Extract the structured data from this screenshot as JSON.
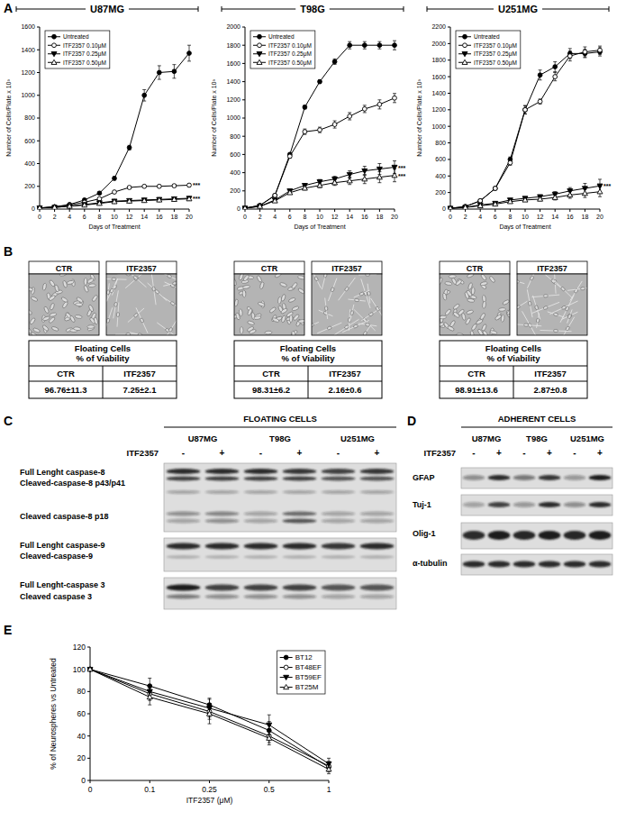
{
  "panel_labels": [
    "A",
    "B",
    "C",
    "D",
    "E"
  ],
  "chart_data": [
    {
      "type": "line",
      "title": "U87MG",
      "x_label": "Days of Treatment",
      "y_label": "Number of Cells/Plate x 10³",
      "x": [
        0,
        2,
        4,
        6,
        8,
        10,
        12,
        14,
        16,
        18,
        20
      ],
      "xlim": [
        0,
        20
      ],
      "xticks": [
        0,
        2,
        4,
        6,
        8,
        10,
        12,
        14,
        16,
        18,
        20
      ],
      "ylim": [
        0,
        1600
      ],
      "yticks": [
        0,
        200,
        400,
        600,
        800,
        1000,
        1200,
        1400,
        1600
      ],
      "grid": false,
      "legend": "upper left",
      "series": [
        {
          "name": "Untreated",
          "color": "#000000",
          "marker": "circle",
          "line_style": "solid",
          "values": [
            10,
            20,
            40,
            80,
            140,
            270,
            540,
            1000,
            1200,
            1210,
            1370
          ],
          "errors": [
            2,
            3,
            5,
            8,
            10,
            15,
            20,
            50,
            60,
            60,
            70
          ]
        },
        {
          "name": "ITF2357 0.10μM",
          "color": "#000000",
          "marker": "open-circle",
          "line_style": "solid",
          "values": [
            10,
            20,
            35,
            60,
            90,
            150,
            190,
            200,
            200,
            205,
            210
          ],
          "errors": [
            2,
            3,
            4,
            5,
            6,
            8,
            10,
            10,
            12,
            12,
            15
          ],
          "annotation": "***"
        },
        {
          "name": "ITF2357 0.25μM",
          "color": "#000000",
          "marker": "triangle-down",
          "line_style": "solid",
          "values": [
            10,
            15,
            25,
            40,
            55,
            70,
            75,
            80,
            85,
            90,
            95
          ],
          "errors": [
            2,
            2,
            3,
            4,
            4,
            5,
            5,
            6,
            6,
            7,
            7
          ],
          "annotation": "***"
        },
        {
          "name": "ITF2357 0.50μM",
          "color": "#000000",
          "marker": "open-triangle",
          "line_style": "solid",
          "values": [
            10,
            15,
            25,
            35,
            50,
            65,
            70,
            75,
            80,
            85,
            90
          ],
          "errors": [
            2,
            2,
            3,
            4,
            4,
            5,
            5,
            6,
            6,
            7,
            7
          ]
        }
      ]
    },
    {
      "type": "line",
      "title": "T98G",
      "x_label": "Days of Treatment",
      "y_label": "Number of Cells/Plate x 10³",
      "x": [
        0,
        2,
        4,
        6,
        8,
        10,
        12,
        14,
        16,
        18,
        20
      ],
      "xlim": [
        0,
        20
      ],
      "xticks": [
        0,
        2,
        4,
        6,
        8,
        10,
        12,
        14,
        16,
        18,
        20
      ],
      "ylim": [
        0,
        2000
      ],
      "yticks": [
        0,
        200,
        400,
        600,
        800,
        1000,
        1200,
        1400,
        1600,
        1800,
        2000
      ],
      "grid": false,
      "legend": "upper left",
      "series": [
        {
          "name": "Untreated",
          "color": "#000000",
          "marker": "circle",
          "line_style": "solid",
          "values": [
            10,
            40,
            150,
            600,
            1120,
            1400,
            1620,
            1800,
            1800,
            1800,
            1800
          ],
          "errors": [
            2,
            5,
            10,
            20,
            20,
            20,
            30,
            40,
            40,
            40,
            50
          ]
        },
        {
          "name": "ITF2357 0.10μM",
          "color": "#000000",
          "marker": "open-circle",
          "line_style": "solid",
          "values": [
            10,
            40,
            150,
            580,
            850,
            870,
            930,
            1020,
            1100,
            1150,
            1220
          ],
          "errors": [
            2,
            5,
            10,
            20,
            30,
            30,
            40,
            40,
            40,
            50,
            50
          ]
        },
        {
          "name": "ITF2357 0.25μM",
          "color": "#000000",
          "marker": "triangle-down",
          "line_style": "solid",
          "values": [
            10,
            30,
            100,
            200,
            260,
            300,
            330,
            380,
            420,
            440,
            460
          ],
          "errors": [
            2,
            4,
            8,
            15,
            20,
            25,
            30,
            40,
            50,
            60,
            70
          ],
          "annotation": "***"
        },
        {
          "name": "ITF2357 0.50μM",
          "color": "#000000",
          "marker": "open-triangle",
          "line_style": "solid",
          "values": [
            10,
            30,
            90,
            180,
            230,
            260,
            290,
            310,
            330,
            350,
            370
          ],
          "errors": [
            2,
            4,
            8,
            15,
            20,
            25,
            30,
            40,
            50,
            60,
            70
          ],
          "annotation": "***"
        }
      ]
    },
    {
      "type": "line",
      "title": "U251MG",
      "x_label": "Days of Treatment",
      "y_label": "Number of Cells/Plate x 10³",
      "x": [
        0,
        2,
        4,
        6,
        8,
        10,
        12,
        14,
        16,
        18,
        20
      ],
      "xlim": [
        0,
        20
      ],
      "xticks": [
        0,
        2,
        4,
        6,
        8,
        10,
        12,
        14,
        16,
        18,
        20
      ],
      "ylim": [
        0,
        2200
      ],
      "yticks": [
        0,
        200,
        400,
        600,
        800,
        1000,
        1200,
        1400,
        1600,
        1800,
        2000,
        2200
      ],
      "grid": false,
      "legend": "upper left",
      "series": [
        {
          "name": "Untreated",
          "color": "#000000",
          "marker": "circle",
          "line_style": "solid",
          "values": [
            10,
            30,
            100,
            250,
            600,
            1200,
            1620,
            1720,
            1880,
            1880,
            1900
          ],
          "errors": [
            2,
            4,
            8,
            15,
            30,
            50,
            60,
            60,
            60,
            50,
            50
          ]
        },
        {
          "name": "ITF2357 0.10μM",
          "color": "#000000",
          "marker": "open-circle",
          "line_style": "solid",
          "values": [
            10,
            30,
            100,
            250,
            560,
            1200,
            1300,
            1600,
            1850,
            1900,
            1920
          ],
          "errors": [
            2,
            4,
            8,
            15,
            30,
            50,
            30,
            50,
            60,
            60,
            50
          ]
        },
        {
          "name": "ITF2357 0.25μM",
          "color": "#000000",
          "marker": "triangle-down",
          "line_style": "solid",
          "values": [
            10,
            20,
            50,
            70,
            110,
            130,
            150,
            180,
            220,
            250,
            280
          ],
          "errors": [
            2,
            3,
            5,
            8,
            10,
            15,
            20,
            30,
            40,
            60,
            80
          ],
          "annotation": "***"
        },
        {
          "name": "ITF2357 0.50μM",
          "color": "#000000",
          "marker": "open-triangle",
          "line_style": "solid",
          "values": [
            10,
            20,
            40,
            60,
            90,
            110,
            120,
            140,
            170,
            190,
            210
          ],
          "errors": [
            2,
            3,
            5,
            8,
            10,
            15,
            20,
            30,
            40,
            50,
            60
          ]
        }
      ]
    },
    {
      "type": "line",
      "x_label": "ITF2357 (μM)",
      "y_label": "% of Neurospheres vs Untreated",
      "categories": [
        "0",
        "0.1",
        "0.25",
        "0.5",
        "1"
      ],
      "ylim": [
        0,
        120
      ],
      "yticks": [
        0,
        20,
        40,
        60,
        80,
        100,
        120
      ],
      "grid": false,
      "legend": "upper right",
      "series": [
        {
          "name": "BT12",
          "color": "#000000",
          "marker": "circle",
          "line_style": "solid",
          "values": [
            100,
            85,
            68,
            45,
            12
          ],
          "errors": [
            0,
            7,
            6,
            8,
            4
          ]
        },
        {
          "name": "BT48EF",
          "color": "#000000",
          "marker": "open-circle",
          "line_style": "solid",
          "values": [
            100,
            78,
            62,
            40,
            13
          ],
          "errors": [
            0,
            6,
            7,
            6,
            4
          ]
        },
        {
          "name": "BT59EF",
          "color": "#000000",
          "marker": "triangle-down",
          "line_style": "solid",
          "values": [
            100,
            80,
            65,
            50,
            15
          ],
          "errors": [
            0,
            6,
            8,
            9,
            5
          ]
        },
        {
          "name": "BT25M",
          "color": "#000000",
          "marker": "open-triangle",
          "line_style": "solid",
          "values": [
            100,
            75,
            60,
            38,
            10
          ],
          "errors": [
            0,
            7,
            9,
            6,
            4
          ]
        }
      ]
    }
  ],
  "panel_b": [
    {
      "photo_labels": [
        "CTR",
        "ITF2357"
      ],
      "table_title": [
        "Floating Cells",
        "% of Viability"
      ],
      "table_header": [
        "CTR",
        "ITF2357"
      ],
      "table_values": [
        "96.76±11.3",
        "7.25±2.1"
      ]
    },
    {
      "photo_labels": [
        "CTR",
        "ITF2357"
      ],
      "table_title": [
        "Floating Cells",
        "% of Viability"
      ],
      "table_header": [
        "CTR",
        "ITF2357"
      ],
      "table_values": [
        "98.31±6.2",
        "2.16±0.6"
      ]
    },
    {
      "photo_labels": [
        "CTR",
        "ITF2357"
      ],
      "table_title": [
        "Floating Cells",
        "% of Viability"
      ],
      "table_header": [
        "CTR",
        "ITF2357"
      ],
      "table_values": [
        "98.91±13.6",
        "2.87±0.8"
      ]
    }
  ],
  "panel_c": {
    "header": "FLOATING CELLS",
    "cell_lines": [
      "U87MG",
      "T98G",
      "U251MG"
    ],
    "treatment": "ITF2357",
    "lanes": [
      "-",
      "+",
      "-",
      "+",
      "-",
      "+"
    ],
    "row_labels": [
      "Full Lenght caspase-8",
      "Cleaved-caspase-8 p43/p41",
      "Cleaved caspase-8 p18",
      "Full Lenght caspase-9",
      "Cleaved-caspase-9",
      "Full Lenght-caspase 3",
      "Cleaved caspase 3"
    ]
  },
  "panel_d": {
    "header": "ADHERENT CELLS",
    "cell_lines": [
      "U87MG",
      "T98G",
      "U251MG"
    ],
    "treatment": "ITF2357",
    "lanes": [
      "-",
      "+",
      "-",
      "+",
      "-",
      "+"
    ],
    "row_labels": [
      "GFAP",
      "Tuj-1",
      "Olig-1",
      "α-tubulin"
    ]
  }
}
